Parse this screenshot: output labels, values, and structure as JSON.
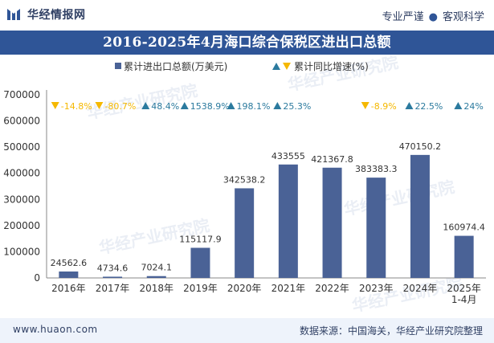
{
  "header": {
    "brand": "华经情报网",
    "slogan_left": "专业严谨",
    "slogan_dot": "●",
    "slogan_right": "客观科学"
  },
  "title": "2016-2025年4月海口综合保税区进出口总额",
  "legend": {
    "bar_label": "累计进出口总额(万美元)",
    "marker_label": "累计同比增速(%)"
  },
  "watermark": "华经产业研究院",
  "watermark_url": "www.huaon.com",
  "footer": {
    "site": "www.huaon.com",
    "source": "数据来源：中国海关，华经产业研究院整理"
  },
  "colors": {
    "bar": "#4a6296",
    "up": "#2b7a9e",
    "down": "#f5b800",
    "title_bg": "#2f5597",
    "footer_bg": "#eef3fb"
  },
  "chart_data": {
    "type": "bar",
    "title": "2016-2025年4月海口综合保税区进出口总额",
    "xlabel": "",
    "ylabel": "",
    "ylim": [
      0,
      700000
    ],
    "yticks": [
      0,
      100000,
      200000,
      300000,
      400000,
      500000,
      600000,
      700000
    ],
    "categories": [
      "2016年",
      "2017年",
      "2018年",
      "2019年",
      "2020年",
      "2021年",
      "2022年",
      "2023年",
      "2024年",
      "2025年\n1-4月"
    ],
    "series": [
      {
        "name": "累计进出口总额(万美元)",
        "values": [
          24562.6,
          4734.6,
          7024.1,
          115117.9,
          342538.2,
          433555,
          421367.8,
          383383.3,
          470150.2,
          160974.4
        ],
        "labels": [
          "24562.6",
          "4734.6",
          "7024.1",
          "115117.9",
          "342538.2",
          "433555",
          "421367.8",
          "383383.3",
          "470150.2",
          "160974.4"
        ]
      }
    ],
    "growth": [
      {
        "value": -14.8,
        "label": "-14.8%"
      },
      {
        "value": -80.7,
        "label": "-80.7%"
      },
      {
        "value": 48.4,
        "label": "48.4%"
      },
      {
        "value": 1538.9,
        "label": "1538.9%"
      },
      {
        "value": 198.1,
        "label": "198.1%"
      },
      {
        "value": 25.3,
        "label": "25.3%"
      },
      null,
      {
        "value": -8.9,
        "label": "-8.9%"
      },
      {
        "value": 22.5,
        "label": "22.5%"
      },
      {
        "value": 24,
        "label": "24%"
      }
    ]
  }
}
